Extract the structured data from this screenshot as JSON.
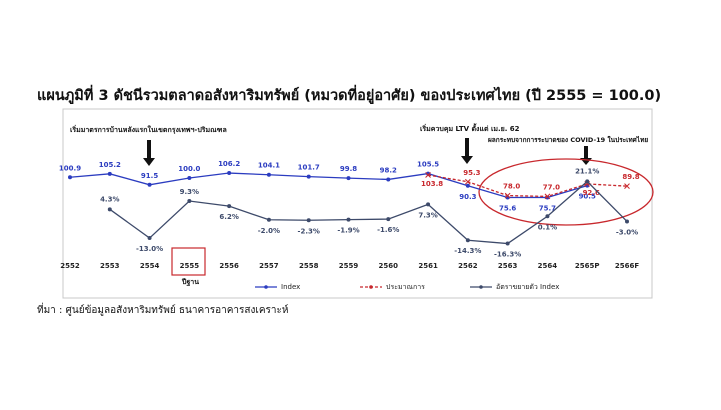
{
  "chart_data": {
    "type": "line",
    "title": "แผนภูมิที่ 3 ดัชนีรวมตลาดอสังหาริมทรัพย์ (หมวดที่อยู่อาศัย) ของประเทศไทย (ปี 2555 = 100.0)",
    "source": "ที่มา : ศูนย์ข้อมูลอสังหาริมทรัพย์ ธนาคารอาคารสงเคราะห์",
    "annotations": [
      "เริ่มมาตรการบ้านหลังแรกในเขตกรุงเทพฯ-ปริมณฑล",
      "เริ่มควบคุม LTV ตั้งแต่ เม.ย. 62",
      "ผลกระทบจากการระบาดของ COVID-19 ในประเทศไทย",
      "ปีฐาน"
    ],
    "categories": [
      "2552",
      "2553",
      "2554",
      "2555",
      "2556",
      "2557",
      "2558",
      "2559",
      "2560",
      "2561",
      "2562",
      "2563",
      "2564",
      "2565P",
      "2566F"
    ],
    "series": [
      {
        "name": "Index",
        "color": "#2b3cc0",
        "values": [
          100.9,
          105.2,
          91.5,
          100.0,
          106.2,
          104.1,
          101.7,
          99.8,
          98.2,
          105.5,
          90.3,
          75.6,
          75.7,
          90.5,
          null
        ],
        "value_labels": [
          "100.9",
          "105.2",
          "91.5",
          "100.0",
          "106.2",
          "104.1",
          "101.7",
          "99.8",
          "98.2",
          "105.5",
          "90.3",
          "75.6",
          "75.7",
          "90.5",
          null
        ]
      },
      {
        "name": "ประมาณการ",
        "color": "#c8282d",
        "values": [
          null,
          null,
          null,
          null,
          null,
          null,
          null,
          null,
          null,
          103.8,
          95.3,
          78.0,
          77.0,
          92.6,
          89.8
        ],
        "value_labels": [
          null,
          null,
          null,
          null,
          null,
          null,
          null,
          null,
          null,
          "103.8",
          "95.3",
          "78.0",
          "77.0",
          "92.6",
          "89.8"
        ]
      },
      {
        "name": "อัตราขยายตัว Index",
        "color": "#3d4a6a",
        "axis": "y2",
        "values": [
          null,
          4.3,
          -13.0,
          9.3,
          6.2,
          -2.0,
          -2.3,
          -1.9,
          -1.6,
          7.3,
          -14.3,
          -16.3,
          0.1,
          21.1,
          -3.0
        ],
        "value_labels": [
          null,
          "4.3%",
          "-13.0%",
          "9.3%",
          "6.2%",
          "-2.0%",
          "-2.3%",
          "-1.9%",
          "-1.6%",
          "7.3%",
          "-14.3%",
          "-16.3%",
          "0.1%",
          "21.1%",
          "-3.0%"
        ]
      }
    ],
    "ylim": [
      0,
      135
    ],
    "y2lim": [
      -25,
      40
    ],
    "legend": "bottom",
    "grid": false
  }
}
